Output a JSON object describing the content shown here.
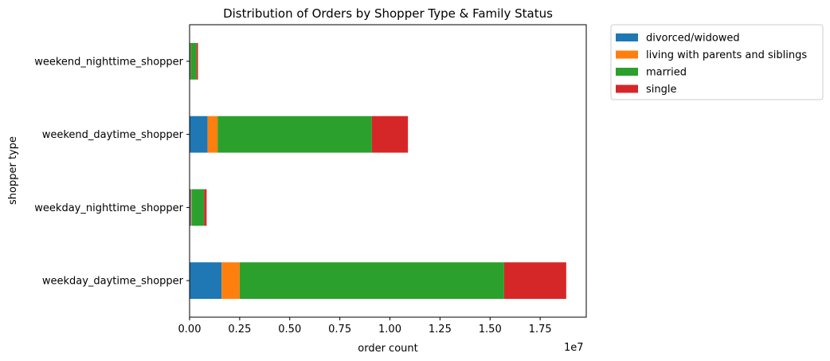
{
  "chart_data": {
    "type": "bar",
    "orientation": "horizontal",
    "stacked": true,
    "title": "Distribution of Orders by Shopper Type & Family Status",
    "xlabel": "order count",
    "ylabel": "shopper type",
    "x_scale_label": "1e7",
    "xlim": [
      0,
      1.98
    ],
    "x_ticks": [
      "0.00",
      "0.25",
      "0.50",
      "0.75",
      "1.00",
      "1.25",
      "1.50",
      "1.75"
    ],
    "categories": [
      "weekday_daytime_shopper",
      "weekday_nighttime_shopper",
      "weekend_daytime_shopper",
      "weekend_nighttime_shopper"
    ],
    "series": [
      {
        "name": "divorced/widowed",
        "color": "#1f77b4",
        "values": [
          0.16,
          0.007,
          0.09,
          0.004
        ]
      },
      {
        "name": "living with parents and siblings",
        "color": "#ff7f0e",
        "values": [
          0.09,
          0.004,
          0.05,
          0.002
        ]
      },
      {
        "name": "married",
        "color": "#2ca02c",
        "values": [
          1.32,
          0.062,
          0.77,
          0.029
        ]
      },
      {
        "name": "single",
        "color": "#d62728",
        "values": [
          0.31,
          0.012,
          0.18,
          0.007
        ]
      }
    ],
    "grid": false,
    "legend_placement": "outside-top-right"
  }
}
